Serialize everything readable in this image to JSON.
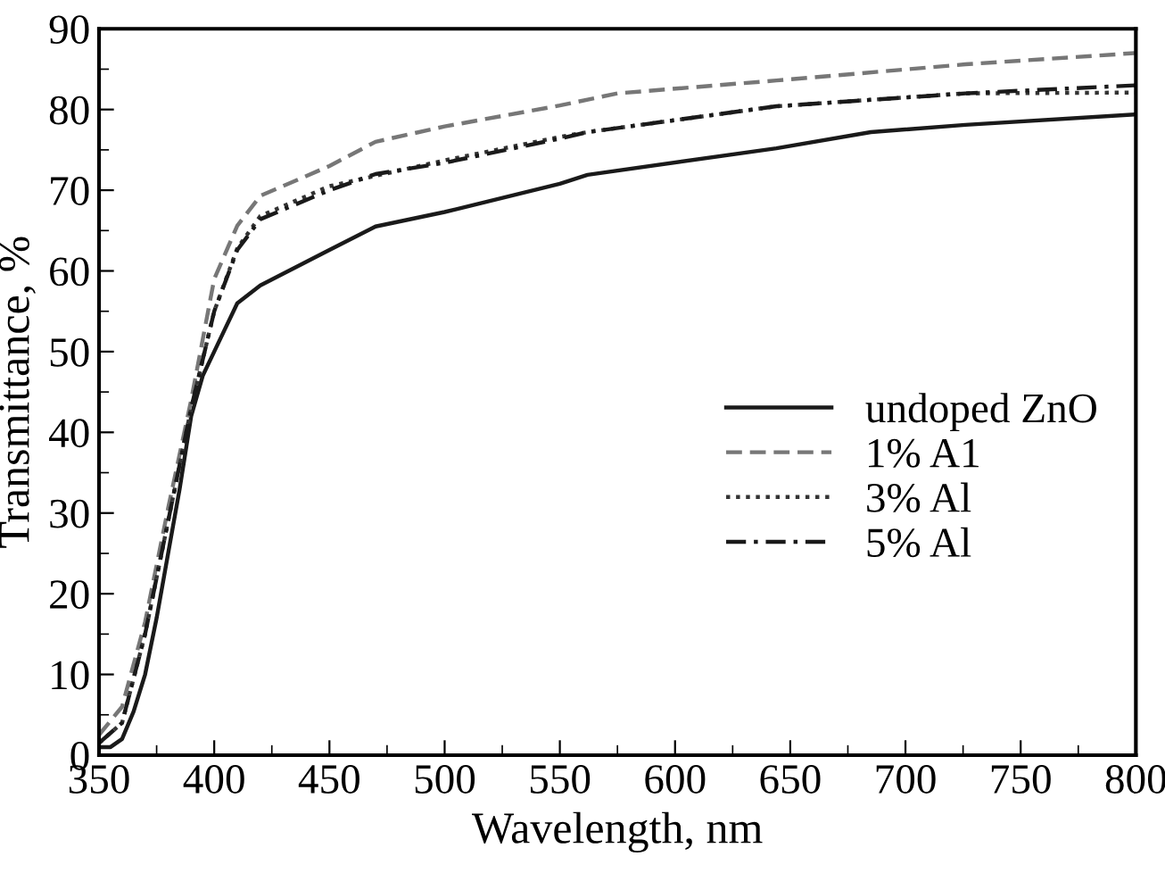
{
  "chart_data": {
    "type": "line",
    "xlabel": "Wavelength, nm",
    "ylabel": "Transmittance, %",
    "xlim": [
      350,
      800
    ],
    "xticks": [
      350,
      400,
      450,
      500,
      550,
      600,
      650,
      700,
      750,
      800
    ],
    "ylim": [
      0,
      90
    ],
    "yticks": [
      0,
      10,
      20,
      30,
      40,
      50,
      60,
      70,
      80,
      90
    ],
    "legend": "right",
    "grid": false,
    "series": [
      {
        "name": "undoped ZnO",
        "color": "#1a1a1a",
        "line_style": "solid",
        "x": [
          350,
          355,
          360,
          365,
          370,
          375,
          380,
          385,
          390,
          395,
          400,
          410,
          420,
          450,
          470,
          500,
          550,
          562,
          644,
          685,
          726,
          800
        ],
        "values": [
          1,
          1,
          2,
          5.4,
          10,
          17,
          25,
          33,
          42,
          47,
          50,
          56,
          58.2,
          62.6,
          65.5,
          67.3,
          70.8,
          71.9,
          75.2,
          77.2,
          78.1,
          79.4
        ]
      },
      {
        "name": "1% A1",
        "color": "#777777",
        "line_style": "dashed",
        "x": [
          350,
          360,
          370,
          380,
          390,
          400,
          410,
          420,
          450,
          470,
          500,
          550,
          575,
          644,
          726,
          800
        ],
        "values": [
          2.5,
          6,
          16.5,
          30.6,
          44,
          59,
          65.6,
          69.3,
          73,
          76,
          77.9,
          80.5,
          82,
          83.6,
          85.6,
          87
        ]
      },
      {
        "name": "3% Al",
        "color": "#333333",
        "line_style": "dotted",
        "x": [
          350,
          360,
          370,
          380,
          390,
          400,
          410,
          420,
          450,
          500,
          550,
          562,
          644,
          726,
          800
        ],
        "values": [
          1.5,
          4,
          15,
          29,
          43,
          55,
          62.8,
          66.8,
          70.5,
          73.7,
          76.6,
          77.2,
          80.4,
          82,
          82.1
        ]
      },
      {
        "name": "5% Al",
        "color": "#1a1a1a",
        "line_style": "dashdot",
        "x": [
          350,
          360,
          370,
          380,
          390,
          400,
          410,
          420,
          450,
          470,
          500,
          550,
          562,
          644,
          726,
          800
        ],
        "values": [
          1.5,
          4,
          15,
          29,
          43,
          55,
          62.6,
          66.4,
          70,
          72,
          73.4,
          76.4,
          77.2,
          80.4,
          82,
          83
        ]
      }
    ]
  }
}
